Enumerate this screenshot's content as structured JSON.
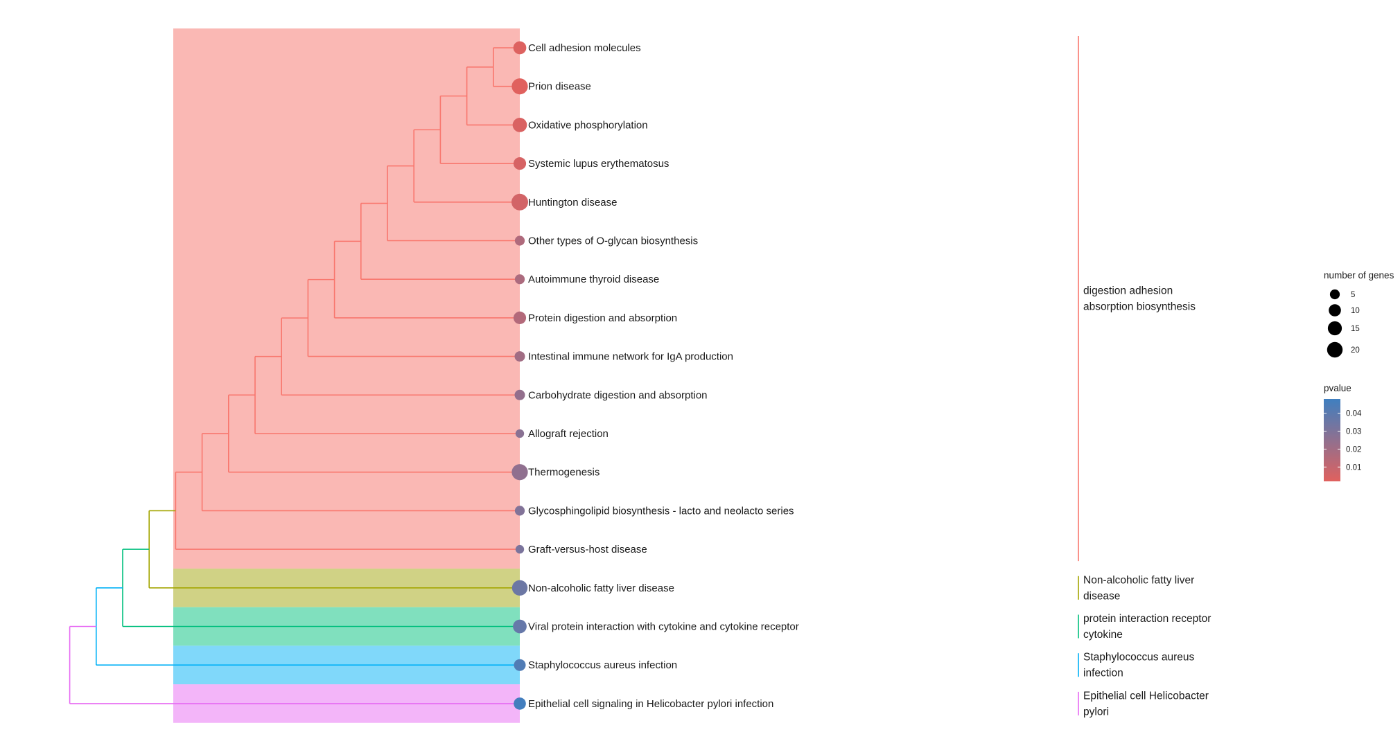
{
  "chart_data": {
    "type": "treeplot",
    "terms": [
      {
        "label": "Cell adhesion molecules",
        "count": 12,
        "pvalue": 0.003
      },
      {
        "label": "Prion disease",
        "count": 22,
        "pvalue": 0.002
      },
      {
        "label": "Oxidative phosphorylation",
        "count": 16,
        "pvalue": 0.004
      },
      {
        "label": "Systemic lupus erythematosus",
        "count": 11,
        "pvalue": 0.005
      },
      {
        "label": "Huntington disease",
        "count": 24,
        "pvalue": 0.006
      },
      {
        "label": "Other types of O-glycan biosynthesis",
        "count": 5,
        "pvalue": 0.016
      },
      {
        "label": "Autoimmune thyroid disease",
        "count": 5,
        "pvalue": 0.017
      },
      {
        "label": "Protein digestion and absorption",
        "count": 11,
        "pvalue": 0.015
      },
      {
        "label": "Intestinal immune network for IgA production",
        "count": 6,
        "pvalue": 0.02
      },
      {
        "label": "Carbohydrate digestion and absorption",
        "count": 6,
        "pvalue": 0.024
      },
      {
        "label": "Allograft rejection",
        "count": 3,
        "pvalue": 0.027
      },
      {
        "label": "Thermogenesis",
        "count": 22,
        "pvalue": 0.025
      },
      {
        "label": "Glycosphingolipid biosynthesis - lacto and neolacto series",
        "count": 5,
        "pvalue": 0.029
      },
      {
        "label": "Graft-versus-host disease",
        "count": 3,
        "pvalue": 0.031
      },
      {
        "label": "Non-alcoholic fatty liver disease",
        "count": 20,
        "pvalue": 0.035
      },
      {
        "label": "Viral protein interaction with cytokine and cytokine receptor",
        "count": 14,
        "pvalue": 0.037
      },
      {
        "label": "Staphylococcus aureus infection",
        "count": 9,
        "pvalue": 0.043
      },
      {
        "label": "Epithelial cell signaling in Helicobacter pylori infection",
        "count": 10,
        "pvalue": 0.047
      }
    ],
    "clusters": [
      {
        "name_lines": [
          "digestion adhesion",
          "absorption biosynthesis"
        ],
        "first": 0,
        "last": 13,
        "color": "#F8766D",
        "fill": "#FAB8B4"
      },
      {
        "name_lines": [
          "Non-alcoholic fatty liver",
          "disease"
        ],
        "first": 14,
        "last": 14,
        "color": "#A3A500",
        "fill": "#D0D285"
      },
      {
        "name_lines": [
          "protein interaction receptor",
          "cytokine"
        ],
        "first": 15,
        "last": 15,
        "color": "#00BF7D",
        "fill": "#80E0BE"
      },
      {
        "name_lines": [
          "Staphylococcus aureus",
          "infection"
        ],
        "first": 16,
        "last": 16,
        "color": "#00B0F6",
        "fill": "#80D8FA"
      },
      {
        "name_lines": [
          "Epithelial cell Helicobacter",
          "pylori"
        ],
        "first": 17,
        "last": 17,
        "color": "#E76BF3",
        "fill": "#F3B5F9"
      }
    ],
    "tree": {
      "cluster1_join_order": [
        [
          0,
          1
        ],
        [
          2
        ],
        [
          3
        ],
        [
          4
        ],
        [
          5
        ],
        [
          6
        ],
        [
          7
        ],
        [
          8
        ],
        [
          9
        ],
        [
          10
        ],
        [
          11
        ],
        [
          12
        ],
        [
          13
        ]
      ],
      "top_join_order": [
        [
          0,
          1
        ],
        [
          2
        ],
        [
          3
        ],
        [
          4
        ]
      ]
    },
    "size_legend": {
      "title": "number of genes",
      "breaks": [
        5,
        10,
        15,
        20
      ]
    },
    "color_legend": {
      "title": "pvalue",
      "breaks": [
        0.01,
        0.02,
        0.03,
        0.04
      ],
      "low_color": "#E0615E",
      "high_color": "#3F7FC0",
      "range": [
        0.002,
        0.048
      ]
    },
    "xlabel": "",
    "ylabel": "",
    "title": ""
  }
}
